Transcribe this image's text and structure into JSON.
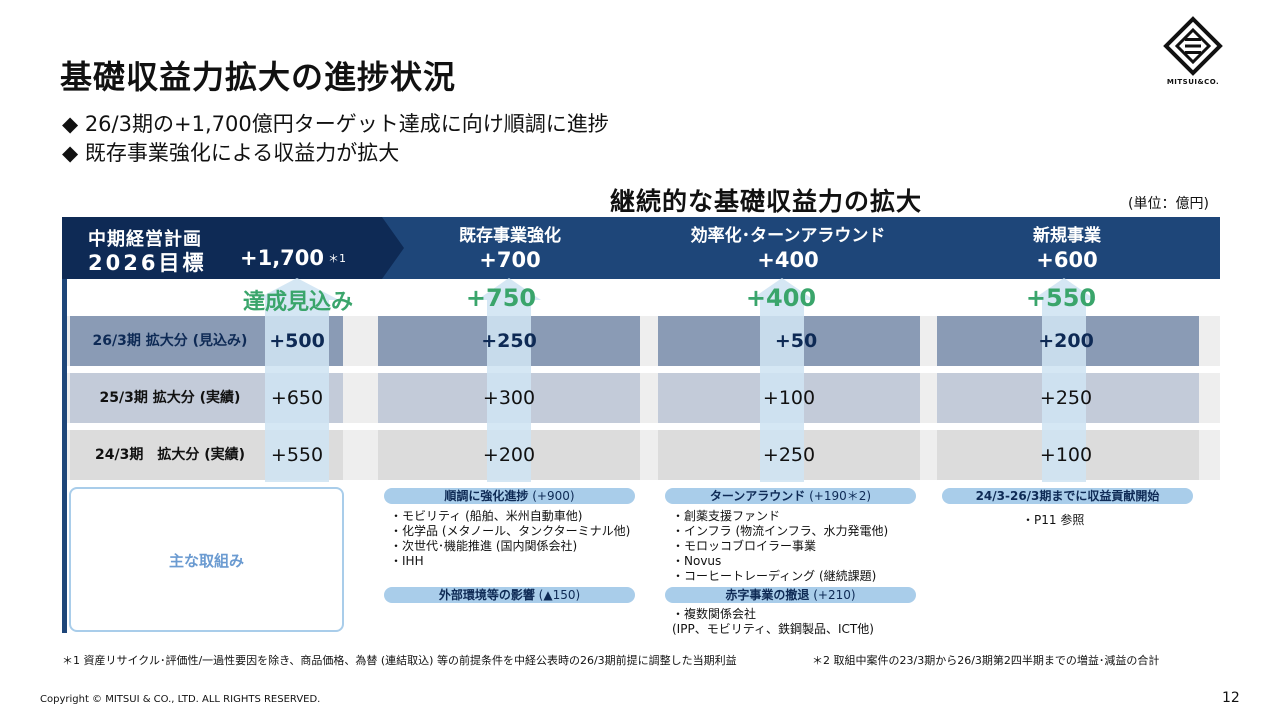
{
  "title": "基礎収益力拡大の進捗状況",
  "bullets": [
    "◆ 26/3期の+1,700億円ターゲット達成に向け順調に進捗",
    "◆ 既存事業強化による収益力が拡大"
  ],
  "logo_text": "MITSUI&CO.",
  "subtitle": "継続的な基礎収益力の拡大",
  "unit": "(単位：億円)",
  "plan": {
    "line1": "中期経営計画",
    "line2": "2026目標",
    "value": "+1,700",
    "note": "＊1",
    "outlook_label": "達成見込み"
  },
  "columns": [
    {
      "name": "既存事業強化",
      "target": "+700",
      "outlook": "+750"
    },
    {
      "name": "効率化･ターンアラウンド",
      "target": "+400",
      "outlook": "+400"
    },
    {
      "name": "新規事業",
      "target": "+600",
      "outlook": "+550"
    }
  ],
  "rows": [
    {
      "label": "26/3期 拡大分 (見込み)",
      "values": [
        "+500",
        "+250",
        "+50",
        "+200"
      ]
    },
    {
      "label": "25/3期 拡大分 (実績)",
      "values": [
        "+650",
        "+300",
        "+100",
        "+250"
      ]
    },
    {
      "label": "24/3期　拡大分 (実績)",
      "values": [
        "+550",
        "+200",
        "+250",
        "+100"
      ]
    }
  ],
  "main_initiatives_label": "主な取組み",
  "col1": {
    "pill1": {
      "text": "順調に強化進捗",
      "num": " (+900)"
    },
    "items1": [
      "・モビリティ (船舶、米州自動車他)",
      "・化学品 (メタノール、タンクターミナル他)",
      "・次世代･機能推進 (国内関係会社)",
      "・IHH"
    ],
    "pill2": {
      "text": "外部環境等の影響",
      "num": " (▲150)"
    }
  },
  "col2": {
    "pill1": {
      "text": "ターンアラウンド",
      "num": " (+190＊2)"
    },
    "items1": [
      "・創薬支援ファンド",
      "・インフラ (物流インフラ、水力発電他)",
      "・モロッコブロイラー事業",
      "・Novus",
      "・コーヒートレーディング (継続課題)"
    ],
    "pill2": {
      "text": "赤字事業の撤退",
      "num": " (+210)"
    },
    "items2": [
      "・複数関係会社",
      "   (IPP、モビリティ、鉄鋼製品、ICT他)"
    ]
  },
  "col3": {
    "pill1": {
      "text": "24/3-26/3期までに収益貢献開始",
      "num": ""
    },
    "items1": [
      "・P11 参照"
    ]
  },
  "footnote1": "＊1 資産リサイクル･評価性/一過性要因を除き、商品価格、為替 (連結取込) 等の前提条件を中経公表時の26/3期前提に調整した当期利益",
  "footnote2": "＊2 取組中案件の23/3期から26/3期第2四半期までの増益･減益の合計",
  "copyright": "Copyright © MITSUI & CO., LTD. ALL RIGHTS RESERVED.",
  "page_number": "12",
  "colors": {
    "navy": "#0e2a55",
    "band": "#1e4679",
    "green": "#3aa56b",
    "pill": "#a9cdea",
    "row1": "#8a9bb5",
    "row2": "#c3cbd9",
    "row3": "#dcdcdc",
    "arrow": "#cfe4f3"
  }
}
